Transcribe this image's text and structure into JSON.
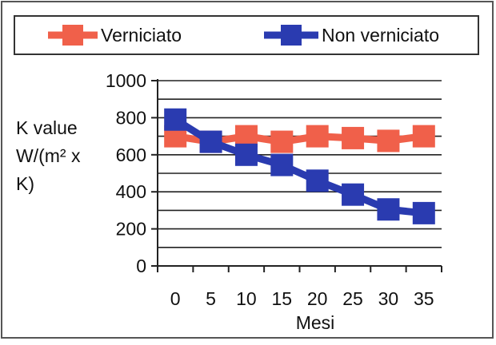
{
  "chart_data": {
    "type": "line",
    "x": [
      0,
      5,
      10,
      15,
      20,
      25,
      30,
      35
    ],
    "xlabel": "Mesi",
    "ylabel_lines": [
      "K value",
      "W/(m² x",
      "K)"
    ],
    "ylim": [
      0,
      1000
    ],
    "yticks": [
      0,
      200,
      400,
      600,
      800,
      1000
    ],
    "grid": true,
    "legend_placement": "top",
    "series": [
      {
        "name": "Verniciato",
        "color": "#f0604a",
        "values": [
          700,
          670,
          700,
          670,
          700,
          690,
          675,
          700
        ]
      },
      {
        "name": "Non verniciato",
        "color": "#2a3bb0",
        "values": [
          790,
          670,
          600,
          545,
          460,
          385,
          305,
          285
        ]
      }
    ]
  }
}
